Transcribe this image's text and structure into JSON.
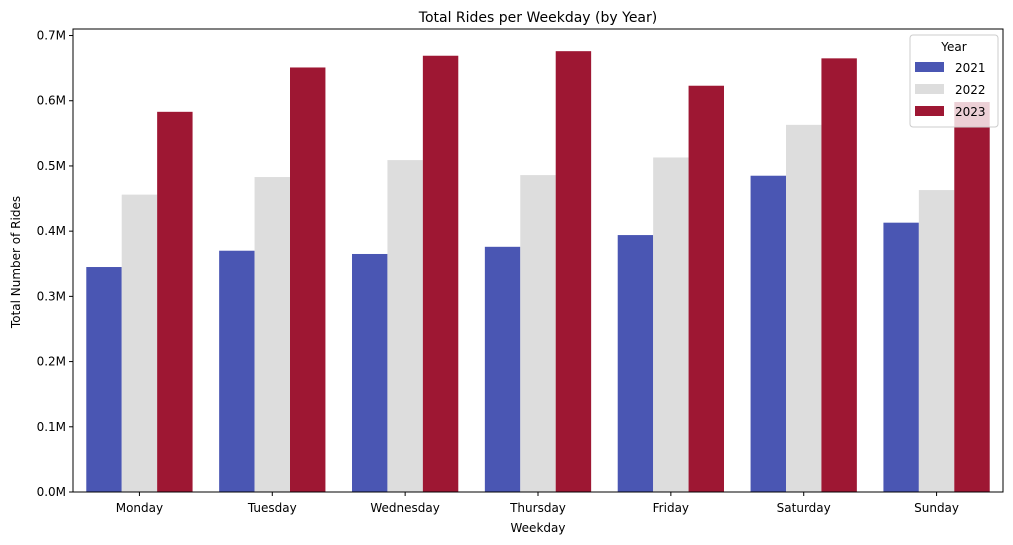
{
  "chart_data": {
    "type": "bar",
    "title": "Total Rides per Weekday (by Year)",
    "xlabel": "Weekday",
    "ylabel": "Total Number of Rides",
    "categories": [
      "Monday",
      "Tuesday",
      "Wednesday",
      "Thursday",
      "Friday",
      "Saturday",
      "Sunday"
    ],
    "ylim": [
      0,
      710000
    ],
    "yticks": [
      0,
      100000,
      200000,
      300000,
      400000,
      500000,
      600000,
      700000
    ],
    "ytick_labels": [
      "0.0M",
      "0.1M",
      "0.2M",
      "0.3M",
      "0.4M",
      "0.5M",
      "0.6M",
      "0.7M"
    ],
    "legend": {
      "title": "Year",
      "position": "top-right"
    },
    "grid": false,
    "series": [
      {
        "name": "2021",
        "color": "#4a56b3",
        "values": [
          345000,
          370000,
          365000,
          376000,
          394000,
          485000,
          413000
        ]
      },
      {
        "name": "2022",
        "color": "#dddddd",
        "values": [
          456000,
          483000,
          509000,
          486000,
          513000,
          563000,
          463000
        ]
      },
      {
        "name": "2023",
        "color": "#9e1733",
        "values": [
          583000,
          651000,
          669000,
          676000,
          623000,
          665000,
          598000
        ]
      }
    ]
  }
}
